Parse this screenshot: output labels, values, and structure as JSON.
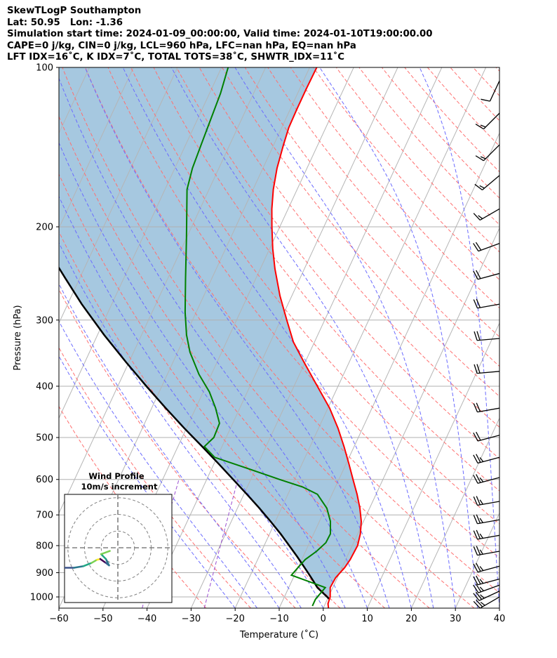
{
  "header": {
    "lines": [
      "SkewTLogP Southampton",
      "Lat: 50.95   Lon: -1.36",
      "Simulation start time: 2024-01-09_00:00:00, Valid time: 2024-01-10T19:00:00.00",
      "CAPE=0 j/kg, CIN=0 j/kg, LCL=960 hPa, LFC=nan hPa, EQ=nan hPa",
      "LFT IDX=16˚C, K IDX=7˚C, TOTAL TOTS=38˚C, SHWTR_IDX=11˚C"
    ]
  },
  "chart_data": {
    "type": "line",
    "xlabel": "Temperature (˚C)",
    "ylabel": "Pressure (hPa)",
    "xlim": [
      -60,
      40
    ],
    "ylim": [
      1050,
      100
    ],
    "y_scale": "log",
    "x_ticks": [
      "−60",
      "−50",
      "−40",
      "−30",
      "−20",
      "−10",
      "0",
      "10",
      "20",
      "30",
      "40"
    ],
    "y_ticks": [
      {
        "p": 100,
        "label": "100"
      },
      {
        "p": 200,
        "label": "200"
      },
      {
        "p": 300,
        "label": "300"
      },
      {
        "p": 400,
        "label": "400"
      },
      {
        "p": 500,
        "label": "500"
      },
      {
        "p": 600,
        "label": "600"
      },
      {
        "p": 700,
        "label": "700"
      },
      {
        "p": 800,
        "label": "800"
      },
      {
        "p": 900,
        "label": "900"
      },
      {
        "p": 1000,
        "label": "1000"
      }
    ],
    "grid": true,
    "colors": {
      "temperature": "#ff0000",
      "dewpoint": "#008000",
      "parcel": "#000000",
      "shading": "#a6c8e0",
      "dry_adiabat": "#ff7070",
      "moist_adiabat": "#6b6bff",
      "mixing_ratio": "#9b4fd1",
      "isotherm": "#b5b5b5"
    },
    "series": [
      {
        "name": "temperature",
        "points": [
          [
            1050,
            1.2
          ],
          [
            1030,
            0.6
          ],
          [
            1000,
            0.4
          ],
          [
            960,
            -0.6
          ],
          [
            920,
            -0.4
          ],
          [
            880,
            0.6
          ],
          [
            850,
            1.0
          ],
          [
            800,
            1.2
          ],
          [
            760,
            0.6
          ],
          [
            720,
            -0.5
          ],
          [
            680,
            -2.2
          ],
          [
            640,
            -4.3
          ],
          [
            600,
            -6.8
          ],
          [
            560,
            -9.4
          ],
          [
            520,
            -12.3
          ],
          [
            480,
            -15.6
          ],
          [
            440,
            -19.6
          ],
          [
            400,
            -24.7
          ],
          [
            360,
            -30.3
          ],
          [
            330,
            -34.8
          ],
          [
            300,
            -38.6
          ],
          [
            270,
            -42.7
          ],
          [
            240,
            -46.7
          ],
          [
            220,
            -49.3
          ],
          [
            200,
            -51.8
          ],
          [
            185,
            -53.7
          ],
          [
            170,
            -55.4
          ],
          [
            155,
            -56.8
          ],
          [
            140,
            -57.8
          ],
          [
            130,
            -58.4
          ],
          [
            120,
            -58.5
          ],
          [
            110,
            -58.5
          ],
          [
            100,
            -58.4
          ]
        ]
      },
      {
        "name": "dewpoint",
        "points": [
          [
            1040,
            -2.7
          ],
          [
            1010,
            -2.7
          ],
          [
            960,
            -1.7
          ],
          [
            940,
            -5.2
          ],
          [
            910,
            -10.7
          ],
          [
            880,
            -10.0
          ],
          [
            850,
            -9.2
          ],
          [
            820,
            -7.5
          ],
          [
            790,
            -6.3
          ],
          [
            760,
            -6.2
          ],
          [
            720,
            -7.5
          ],
          [
            680,
            -9.7
          ],
          [
            640,
            -13.3
          ],
          [
            620,
            -17.4
          ],
          [
            600,
            -23.5
          ],
          [
            570,
            -32.5
          ],
          [
            545,
            -40.5
          ],
          [
            520,
            -44.0
          ],
          [
            500,
            -42.8
          ],
          [
            470,
            -43.0
          ],
          [
            440,
            -45.5
          ],
          [
            410,
            -48.6
          ],
          [
            380,
            -52.8
          ],
          [
            345,
            -57.2
          ],
          [
            320,
            -59.8
          ],
          [
            290,
            -62.5
          ],
          [
            250,
            -66.0
          ],
          [
            210,
            -70.0
          ],
          [
            185,
            -73.0
          ],
          [
            170,
            -75.0
          ],
          [
            155,
            -76.0
          ],
          [
            140,
            -76.5
          ],
          [
            125,
            -77.0
          ],
          [
            112,
            -77.5
          ],
          [
            100,
            -78.5
          ]
        ]
      },
      {
        "name": "parcel",
        "points": [
          [
            1010,
            0.5
          ],
          [
            960,
            -3.5
          ],
          [
            930,
            -5.3
          ],
          [
            900,
            -7.2
          ],
          [
            870,
            -9.2
          ],
          [
            840,
            -11.3
          ],
          [
            800,
            -14.3
          ],
          [
            760,
            -17.5
          ],
          [
            720,
            -21.1
          ],
          [
            680,
            -25.0
          ],
          [
            640,
            -29.3
          ],
          [
            600,
            -34.0
          ],
          [
            560,
            -39.0
          ],
          [
            520,
            -44.5
          ],
          [
            480,
            -50.5
          ],
          [
            440,
            -56.8
          ],
          [
            400,
            -63.5
          ],
          [
            360,
            -70.7
          ],
          [
            320,
            -78.5
          ],
          [
            280,
            -86.8
          ],
          [
            250,
            -93.3
          ],
          [
            220,
            -100.5
          ],
          [
            200,
            -105.7
          ],
          [
            180,
            -111.3
          ],
          [
            160,
            -117.5
          ],
          [
            140,
            -124.6
          ],
          [
            120,
            -132.7
          ],
          [
            110,
            -137.4
          ],
          [
            100,
            -142.4
          ]
        ]
      }
    ],
    "wind_barbs": [
      {
        "p": 1000,
        "direction": 240,
        "speed_kt": 25
      },
      {
        "p": 975,
        "direction": 245,
        "speed_kt": 25
      },
      {
        "p": 950,
        "direction": 250,
        "speed_kt": 25
      },
      {
        "p": 925,
        "direction": 255,
        "speed_kt": 25
      },
      {
        "p": 875,
        "direction": 255,
        "speed_kt": 25
      },
      {
        "p": 820,
        "direction": 260,
        "speed_kt": 25
      },
      {
        "p": 765,
        "direction": 260,
        "speed_kt": 25
      },
      {
        "p": 715,
        "direction": 260,
        "speed_kt": 25
      },
      {
        "p": 660,
        "direction": 260,
        "speed_kt": 25
      },
      {
        "p": 595,
        "direction": 255,
        "speed_kt": 25
      },
      {
        "p": 545,
        "direction": 255,
        "speed_kt": 25
      },
      {
        "p": 495,
        "direction": 255,
        "speed_kt": 20
      },
      {
        "p": 440,
        "direction": 260,
        "speed_kt": 20
      },
      {
        "p": 375,
        "direction": 265,
        "speed_kt": 20
      },
      {
        "p": 325,
        "direction": 265,
        "speed_kt": 20
      },
      {
        "p": 280,
        "direction": 260,
        "speed_kt": 20
      },
      {
        "p": 245,
        "direction": 255,
        "speed_kt": 20
      },
      {
        "p": 215,
        "direction": 250,
        "speed_kt": 20
      },
      {
        "p": 185,
        "direction": 240,
        "speed_kt": 15
      },
      {
        "p": 160,
        "direction": 230,
        "speed_kt": 15
      },
      {
        "p": 140,
        "direction": 225,
        "speed_kt": 15
      },
      {
        "p": 122,
        "direction": 225,
        "speed_kt": 15
      },
      {
        "p": 106,
        "direction": 205,
        "speed_kt": 10
      }
    ],
    "hodograph": {
      "title": "Wind Profile",
      "subtitle": "10m/s increment",
      "ring_count": 3,
      "range": 16,
      "points": [
        [
          -7.8,
          -2.6
        ],
        [
          -8.6,
          -2.4
        ],
        [
          -9.5,
          -2.0
        ],
        [
          -10.2,
          -1.6
        ],
        [
          -10.6,
          -1.0
        ],
        [
          -10.4,
          -0.6
        ],
        [
          -10.3,
          -0.9
        ],
        [
          -9.8,
          -1.5
        ],
        [
          -9.0,
          -1.9
        ],
        [
          -8.0,
          -2.3
        ],
        [
          -6.8,
          -2.5
        ],
        [
          -5.5,
          -2.5
        ],
        [
          -4.3,
          -2.3
        ],
        [
          -3.3,
          -1.9
        ],
        [
          -2.6,
          -1.5
        ],
        [
          -2.2,
          -1.4
        ],
        [
          -1.5,
          -1.9
        ],
        [
          -1.1,
          -2.2
        ],
        [
          -1.5,
          -1.4
        ],
        [
          -2.1,
          -0.8
        ],
        [
          -1.0,
          -0.4
        ]
      ]
    }
  }
}
